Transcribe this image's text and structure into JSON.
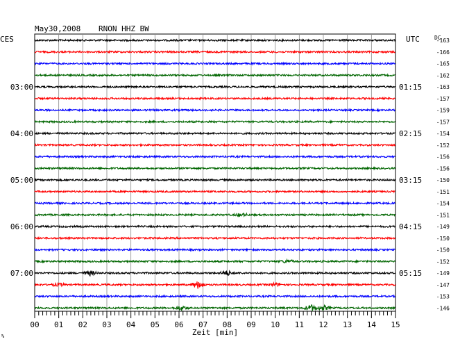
{
  "header": {
    "date": "May30,2008",
    "station": "RNON HHZ BW",
    "left_zone": "CES",
    "right_zone": "UTC",
    "dc_label": "DC"
  },
  "xaxis": {
    "label": "Zeit [min]"
  },
  "footer": {
    "mark": "%"
  },
  "colors": {
    "cycle": [
      "#000000",
      "#ff0000",
      "#0000ff",
      "#006600"
    ]
  },
  "chart_data": {
    "type": "line",
    "title": "May30,2008   RNON HHZ BW",
    "xlabel": "Zeit [min]",
    "ylabel": "",
    "xlim": [
      0,
      15
    ],
    "x_ticks": [
      "00",
      "01",
      "02",
      "03",
      "04",
      "05",
      "06",
      "07",
      "08",
      "09",
      "10",
      "11",
      "12",
      "13",
      "14",
      "15"
    ],
    "grid": true,
    "trace_count": 24,
    "trace_colors": [
      "#000000",
      "#ff0000",
      "#0000ff",
      "#006600",
      "#000000",
      "#ff0000",
      "#0000ff",
      "#006600",
      "#000000",
      "#ff0000",
      "#0000ff",
      "#006600",
      "#000000",
      "#ff0000",
      "#0000ff",
      "#006600",
      "#000000",
      "#ff0000",
      "#0000ff",
      "#006600",
      "#000000",
      "#ff0000",
      "#0000ff",
      "#006600"
    ],
    "dc_offsets": [
      "-163",
      "-166",
      "-165",
      "-162",
      "-163",
      "-157",
      "-159",
      "-157",
      "-154",
      "-152",
      "-156",
      "-156",
      "-150",
      "-151",
      "-154",
      "-151",
      "-149",
      "-150",
      "-150",
      "-152",
      "-149",
      "-147",
      "-153",
      "-146"
    ],
    "time_labels": [
      {
        "trace": 4,
        "local": "03:00",
        "utc": "01:15"
      },
      {
        "trace": 8,
        "local": "04:00",
        "utc": "02:15"
      },
      {
        "trace": 12,
        "local": "05:00",
        "utc": "03:15"
      },
      {
        "trace": 16,
        "local": "06:00",
        "utc": "04:15"
      },
      {
        "trace": 20,
        "local": "07:00",
        "utc": "05:15"
      }
    ],
    "events": [
      {
        "trace": 20,
        "x": 2.3,
        "amp": 3
      },
      {
        "trace": 20,
        "x": 8.0,
        "amp": 3
      },
      {
        "trace": 21,
        "x": 6.8,
        "amp": 5
      },
      {
        "trace": 21,
        "x": 1.0,
        "amp": 2
      },
      {
        "trace": 21,
        "x": 10.0,
        "amp": 2
      },
      {
        "trace": 23,
        "x": 6.1,
        "amp": 3
      },
      {
        "trace": 23,
        "x": 11.5,
        "amp": 4
      },
      {
        "trace": 23,
        "x": 12.0,
        "amp": 3
      },
      {
        "trace": 15,
        "x": 8.6,
        "amp": 2
      },
      {
        "trace": 19,
        "x": 10.5,
        "amp": 2
      }
    ]
  }
}
